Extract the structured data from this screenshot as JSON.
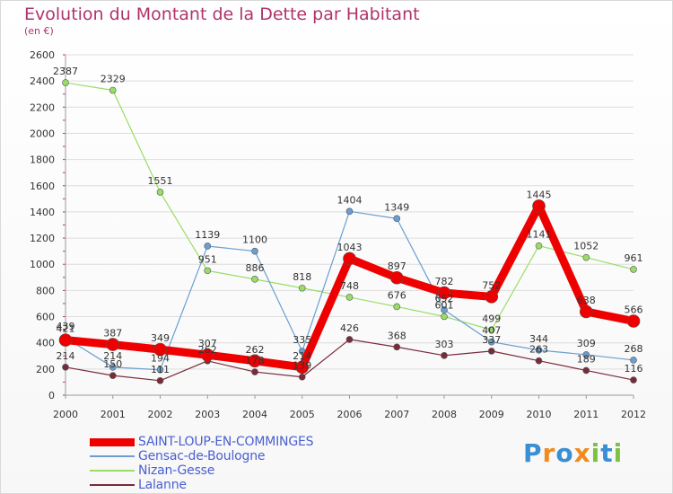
{
  "title": "Evolution du Montant de la Dette par Habitant",
  "subtitle": "(en €)",
  "logo": {
    "text": "Proxiti",
    "letters": [
      "P",
      "r",
      "o",
      "x",
      "i",
      "t",
      "i"
    ],
    "colors": [
      "#3a8fd4",
      "#f28a1e",
      "#3a8fd4",
      "#f28a1e",
      "#7cc242",
      "#3a8fd4",
      "#7cc242"
    ]
  },
  "chart_data": {
    "type": "line",
    "title": "Evolution du Montant de la Dette par Habitant",
    "subtitle": "(en €)",
    "x": [
      "2000",
      "2001",
      "2002",
      "2003",
      "2004",
      "2005",
      "2006",
      "2007",
      "2008",
      "2009",
      "2010",
      "2011",
      "2012"
    ],
    "ylim": [
      0,
      2600
    ],
    "yticks": [
      "0",
      "200",
      "400",
      "600",
      "800",
      "1000",
      "1200",
      "1400",
      "1600",
      "1800",
      "2000",
      "2200",
      "2400",
      "2600"
    ],
    "legend_position": "bottom-left",
    "series": [
      {
        "name": "Nizan-Gesse",
        "color": "#99dd66",
        "width": 1.2,
        "marker": 3.5,
        "values": [
          2387,
          2329,
          1551,
          951,
          886,
          818,
          748,
          676,
          601,
          499,
          1141,
          1052,
          961
        ],
        "labels": [
          "2387",
          "2329",
          "1551",
          "951",
          "886",
          "818",
          "748",
          "676",
          "601",
          "499",
          "1141",
          "1052",
          "961"
        ]
      },
      {
        "name": "Gensac-de-Boulogne",
        "color": "#6a9fd0",
        "width": 1.2,
        "marker": 3.5,
        "values": [
          439,
          214,
          194,
          1139,
          1100,
          335,
          1404,
          1349,
          652,
          407,
          344,
          309,
          268
        ],
        "labels": [
          "439",
          "214",
          "194",
          "1139",
          "1100",
          "335",
          "1404",
          "1349",
          "652",
          "407",
          "344",
          "309",
          "268"
        ]
      },
      {
        "name": "Lalanne",
        "color": "#7a2a3a",
        "width": 1.2,
        "marker": 3.5,
        "values": [
          214,
          150,
          111,
          262,
          178,
          139,
          426,
          368,
          303,
          337,
          263,
          189,
          116
        ],
        "labels": [
          "214",
          "150",
          "111",
          "262",
          "178",
          "139",
          "426",
          "368",
          "303",
          "337",
          "263",
          "189",
          "116"
        ]
      },
      {
        "name": "SAINT-LOUP-EN-COMMINGES",
        "color": "#ee0000",
        "width": 9,
        "marker": 7,
        "values": [
          421,
          387,
          349,
          307,
          262,
          214,
          1043,
          897,
          782,
          752,
          1445,
          638,
          566
        ],
        "labels": [
          "421",
          "387",
          "349",
          "307",
          "262",
          "214",
          "1043",
          "897",
          "782",
          "752",
          "1445",
          "638",
          "566"
        ]
      }
    ],
    "legend": [
      {
        "name": "SAINT-LOUP-EN-COMMINGES",
        "color": "#ee0000",
        "thickness": 9
      },
      {
        "name": "Gensac-de-Boulogne",
        "color": "#6a9fd0",
        "thickness": 2
      },
      {
        "name": "Nizan-Gesse",
        "color": "#99dd66",
        "thickness": 2
      },
      {
        "name": "Lalanne",
        "color": "#7a2a3a",
        "thickness": 2
      }
    ]
  }
}
